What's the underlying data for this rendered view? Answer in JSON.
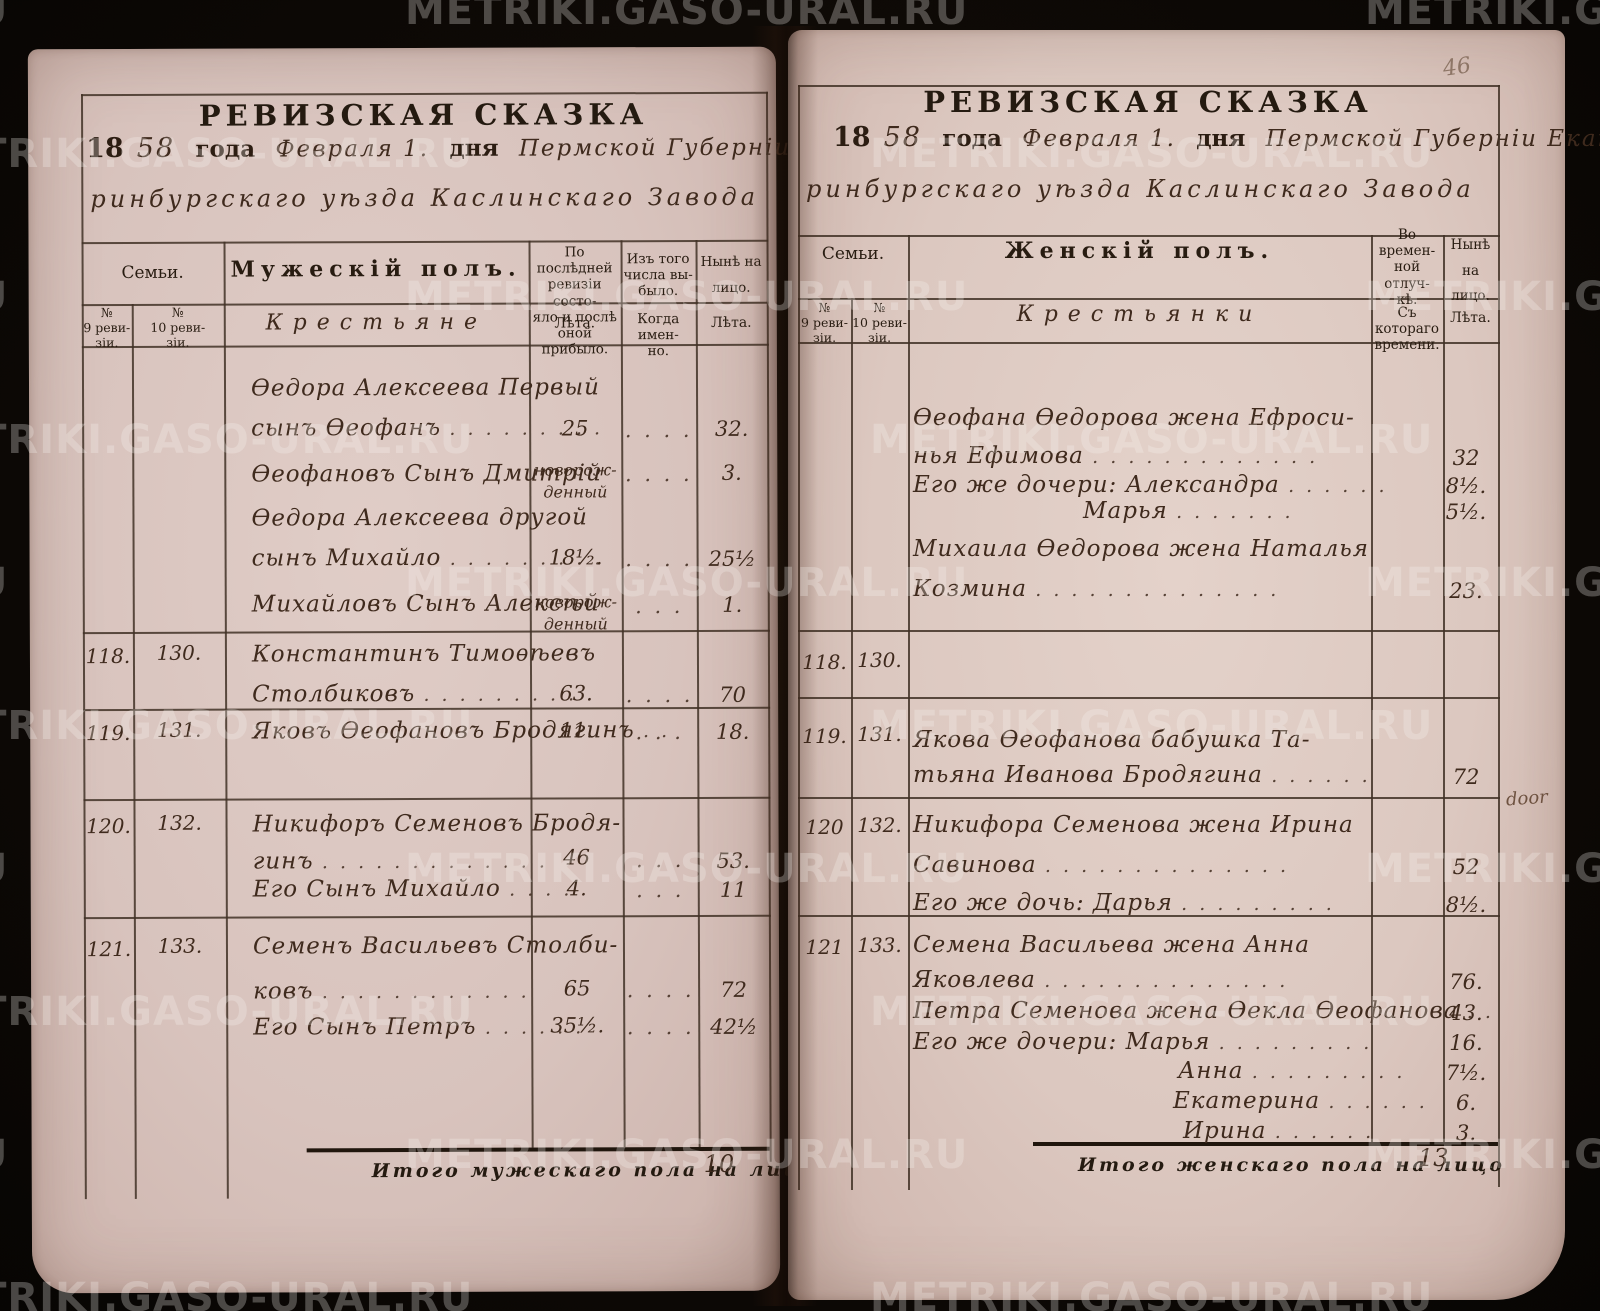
{
  "watermark_text": "METRIKI.GASO-URAL.RU",
  "folio_number": "46",
  "margin_note": "door",
  "colors": {
    "paper": "#d8c3bd",
    "printed_ink": "#281c11",
    "hand_ink": "#3f2a1d",
    "background": "#0c0805",
    "pencil": "#8d7566"
  },
  "left_page": {
    "title": "РЕВИЗСКАЯ СКАЗКА",
    "heading": {
      "printed_18": "18",
      "hand_year": "58",
      "printed_goda": "года",
      "hand_date": "Февраля 1.",
      "printed_dnya": "дня",
      "hand_place": "Пермской Губерніи Екате-",
      "hand_place2": "ринбургскаго уѣзда Каслинскаго Завода"
    },
    "header": {
      "family": "Семьи.",
      "sex": "Мужескій полъ.",
      "prev_revision": "По послѣдней\nревизіи состо-\nяло и послѣ\nоной прибыло.",
      "departed": "Изъ того\nчисла вы-\nбыло.",
      "present": "Нынѣ на\nлицо.",
      "rev9": "№\n9 реви-\nзіи.",
      "rev10": "№\n10 реви-\nзіи.",
      "class_label": "Крестьяне",
      "years1": "Лѣта.",
      "when": "Когда имен-\nно.",
      "years2": "Лѣта."
    },
    "lines": [
      {
        "text": "Ѳедора Алексеева Первый"
      },
      {
        "text": "сынъ Ѳеофанъ",
        "dots": ". . . . .  . . . .",
        "prev": "25",
        "when": ". . . .",
        "now": "32."
      },
      {
        "text": "Ѳеофановъ Сынъ Дмитрій",
        "prev": "новорож-\nденный",
        "when": ". . . .",
        "now": "3."
      },
      {
        "text": "Ѳедора Алексеева другой"
      },
      {
        "text": "сынъ Михайло",
        "dots": ". . .  . . .  . . .",
        "prev": "18½.",
        "when": ". . . .",
        "now": "25½"
      },
      {
        "text": "Михайловъ Сынъ Алексѣй",
        "prev": "новорож-\nденный",
        "when": ". . .",
        "now": "1."
      },
      {
        "n9": "118.",
        "n10": "130.",
        "text": "Константинъ Тимоѳѣевъ"
      },
      {
        "text": "Столбиковъ",
        "dots": ". . . . . . . . . .",
        "prev": "63.",
        "when": ". . . .",
        "now": "70"
      },
      {
        "n9": "119.",
        "n10": "131.",
        "text": "Яковъ Ѳеофановъ Бродягинъ",
        "dots": ". .",
        "prev": "11.",
        "when": ". . .",
        "now": "18."
      },
      {
        "n9": "120.",
        "n10": "132.",
        "text": "Никифоръ Семеновъ Бродя-"
      },
      {
        "text": "гинъ",
        "dots": ". . . . . . . . . . . . .",
        "prev": "46",
        "when": ". . .",
        "now": "53."
      },
      {
        "text": "Его Сынъ Михайло",
        "dots": ". . . .",
        "prev": "4.",
        "when": ". . .",
        "now": "11"
      },
      {
        "n9": "121.",
        "n10": "133.",
        "text": "Семенъ Васильевъ Столби-"
      },
      {
        "text": "ковъ",
        "dots": ". . . . . . . . . . . .",
        "prev": "65",
        "when": ". . . .",
        "now": "72"
      },
      {
        "text": "Его Сынъ Петръ",
        "dots": ". . . . . .",
        "prev": "35½.",
        "when": ". . . .",
        "now": "42½"
      }
    ],
    "footer": {
      "label": "Итого мужескаго пола на лицо",
      "value": "10"
    }
  },
  "right_page": {
    "title": "РЕВИЗСКАЯ СКАЗКА",
    "heading": {
      "printed_18": "18",
      "hand_year": "58",
      "printed_goda": "года",
      "hand_date": "Февраля 1.",
      "printed_dnya": "дня",
      "hand_place": "Пермской Губерніи Екате-",
      "hand_place2": "ринбургскаго уѣзда Каслинскаго Завода"
    },
    "header": {
      "family": "Семьи.",
      "sex": "Женскій полъ.",
      "absence": "Во времен-\nной отлуч-\nкѣ.",
      "present": "Нынѣ на\nлицо.",
      "rev9": "№\n9 реви-\nзіи.",
      "rev10": "№\n10 реви-\nзіи.",
      "class_label": "Крестьянки",
      "since": "Съ котораго\nвремени.",
      "years": "Лѣта."
    },
    "lines": [
      {
        "text": "Ѳеофана Ѳедорова жена Ефроси-"
      },
      {
        "text": "нья Ефимова",
        "dots": ". . . . . . .  . . . . . .",
        "now": "32"
      },
      {
        "text": "Его же дочери: Александра",
        "dots": ". . . . . .",
        "now": "8½."
      },
      {
        "text": "Марья",
        "dots": ". . . .  . . .",
        "now": "5½."
      },
      {
        "text": "Михаила Ѳедорова жена Наталья"
      },
      {
        "text": "Козмина",
        "dots": ". . .  . . . . . .  . . . . .",
        "now": "23."
      },
      {
        "n9": "118.",
        "n10": "130."
      },
      {
        "n9": "119.",
        "n10": "131.",
        "text": "Якова Ѳеофанова бабушка Та-"
      },
      {
        "text": "тьяна Иванова Бродягина",
        "dots": ". . . . . .",
        "now": "72"
      },
      {
        "n9": "120",
        "n10": "132.",
        "text": "Никифора Семенова жена Ирина"
      },
      {
        "text": "Савинова",
        "dots": ". . .  . . . . . . .  . . . .",
        "now": "52"
      },
      {
        "text": "Его же дочь: Дарья",
        "dots": ". . . . . . . . .",
        "now": "8½."
      },
      {
        "n9": "121",
        "n10": "133.",
        "text": "Семена Васильева жена Анна"
      },
      {
        "text": "Яковлева",
        "dots": ". . . . . . . . .  . . . . .",
        "now": "76."
      },
      {
        "text": "Петра Семенова жена Ѳекла Ѳеофанова",
        "dots": ". .",
        "now": "43."
      },
      {
        "text": "Его же дочери: Марья",
        "dots": ". . . . . . . . .",
        "now": "16."
      },
      {
        "text": "Анна",
        "dots": ". . . . . . . . .",
        "now": "7½."
      },
      {
        "text": "Екатерина",
        "dots": ". . . . . .",
        "now": "6."
      },
      {
        "text": "Ирина",
        "dots": ". . . . . .",
        "now": "3."
      }
    ],
    "footer": {
      "label": "Итого женскаго пола на лицо",
      "value": "13"
    }
  }
}
